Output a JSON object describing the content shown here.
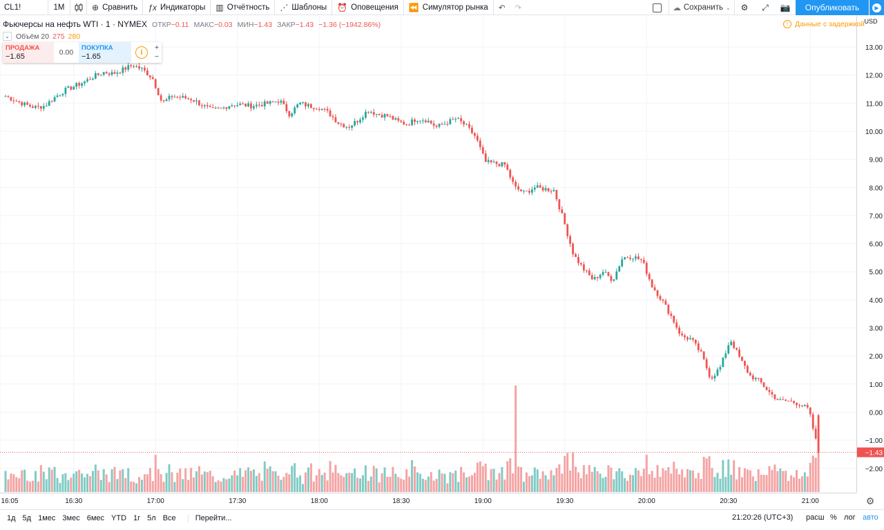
{
  "toolbar": {
    "symbol": "CL1!",
    "interval": "1M",
    "compare": "Сравнить",
    "indicators": "Индикаторы",
    "reports": "Отчётность",
    "templates": "Шаблоны",
    "alerts": "Оповещения",
    "replay": "Симулятор рынка",
    "save": "Сохранить",
    "publish": "Опубликовать"
  },
  "legend": {
    "title": "Фьючерсы на нефть WTI · 1 · NYMEX",
    "open_label": "ОТКР",
    "open": "−0.11",
    "high_label": "МАКС",
    "high": "−0.03",
    "low_label": "МИН",
    "low": "−1.43",
    "close_label": "ЗАКР",
    "close": "−1.43",
    "change": "−1.36 (−1942.86%)",
    "volume_label": "Объём 20",
    "volume_v1": "275",
    "volume_v2": "280",
    "delay_notice": "Данные с задержкой"
  },
  "trade": {
    "sell_label": "ПРОДАЖА",
    "sell_price": "−1.65",
    "spread": "0.00",
    "buy_label": "ПОКУПКА",
    "buy_price": "−1.65"
  },
  "axis": {
    "currency": "USD",
    "price_labels": [
      "13.00",
      "12.00",
      "11.00",
      "10.00",
      "9.00",
      "8.00",
      "7.00",
      "6.00",
      "5.00",
      "4.00",
      "3.00",
      "2.00",
      "1.00",
      "0.00",
      "−1.00",
      "−2.00"
    ],
    "current_price": "−1.43",
    "time_labels": [
      "16:05",
      "16:30",
      "17:00",
      "17:30",
      "18:00",
      "18:30",
      "19:00",
      "19:30",
      "20:00",
      "20:30",
      "21:00"
    ]
  },
  "bottom": {
    "ranges": [
      "1д",
      "5д",
      "1мес",
      "3мес",
      "6мес",
      "YTD",
      "1г",
      "5л",
      "Все"
    ],
    "goto": "Перейти...",
    "clock": "21:20:26 (UTC+3)",
    "ext": "расш",
    "pct": "%",
    "log": "лог",
    "auto": "авто"
  },
  "colors": {
    "up": "#26a69a",
    "down": "#ef5350",
    "vol_up": "#80cbc4",
    "vol_down": "#f4a3a3",
    "accent": "#2196f3"
  },
  "chart_data": {
    "type": "candlestick",
    "title": "Фьючерсы на нефть WTI · 1 · NYMEX",
    "ylim": [
      -2.5,
      13.2
    ],
    "x_first_time": "16:05",
    "x_last_time": "21:03",
    "x_minutes_per_bar": 1,
    "close_path": [
      11.25,
      11.1,
      10.95,
      10.85,
      10.9,
      11.2,
      11.45,
      11.6,
      11.75,
      11.95,
      12.1,
      12.05,
      12.2,
      12.35,
      12.2,
      11.9,
      11.0,
      11.25,
      11.2,
      11.15,
      10.95,
      10.75,
      10.8,
      10.95,
      10.95,
      10.9,
      10.95,
      11.0,
      11.1,
      10.6,
      11.0,
      10.9,
      10.85,
      10.65,
      10.3,
      10.15,
      10.4,
      10.75,
      10.6,
      10.55,
      10.35,
      10.25,
      10.45,
      10.4,
      10.15,
      10.3,
      10.45,
      10.2,
      9.8,
      8.9,
      8.85,
      8.8,
      8.0,
      7.8,
      8.0,
      7.95,
      7.9,
      6.8,
      5.6,
      5.1,
      4.7,
      5.0,
      4.7,
      5.5,
      5.55,
      5.4,
      4.5,
      4.0,
      3.4,
      2.7,
      2.6,
      2.1,
      1.2,
      1.6,
      2.6,
      1.9,
      1.3,
      1.1,
      0.7,
      0.4,
      0.4,
      0.3,
      0.1,
      -1.43
    ],
    "volume_spikes": [
      {
        "time": "19:12",
        "volume": 280
      }
    ],
    "current_value": -1.43
  }
}
